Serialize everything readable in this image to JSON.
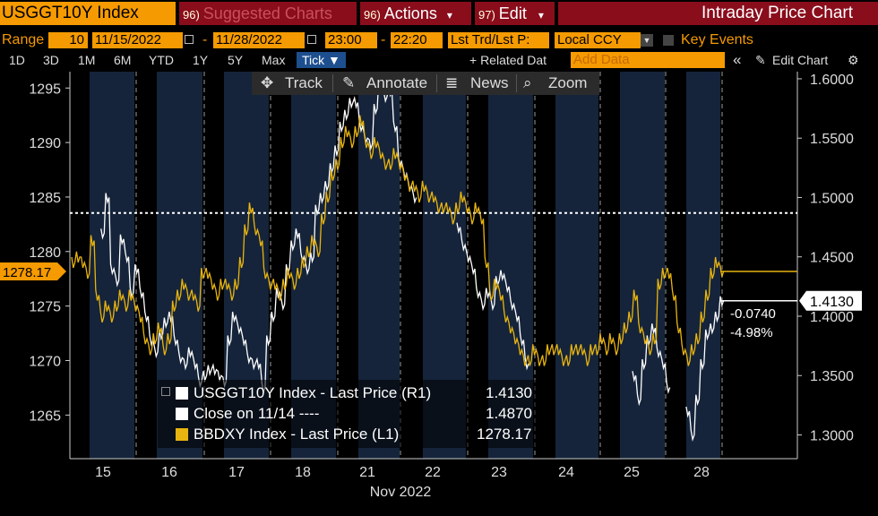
{
  "header": {
    "ticker": "USGGT10Y Index",
    "suggested": {
      "num": "96)",
      "label": "Suggested Charts"
    },
    "actions": {
      "num": "96)",
      "label": "Actions",
      "caret": "▾"
    },
    "edit": {
      "num": "97)",
      "label": "Edit",
      "caret": "▾"
    },
    "title": "Intraday Price Chart"
  },
  "controls": {
    "range_label": "Range",
    "range_value": "10",
    "start_date": "11/15/2022",
    "dash1": "-",
    "end_date": "11/28/2022",
    "start_time": "23:00",
    "dash2": "-",
    "end_time": "22:20",
    "price_type": "Lst Trd/Lst P:",
    "currency": "Local CCY",
    "key_events": "Key Events"
  },
  "periods": [
    "1D",
    "3D",
    "1M",
    "6M",
    "YTD",
    "1Y",
    "5Y",
    "Max"
  ],
  "tick_label": "Tick ▼",
  "related": "+ Related Dat",
  "add_data_placeholder": "Add Data",
  "collapse": "«",
  "edit_chart": "Edit Chart",
  "toolbar": {
    "track": "Track",
    "annotate": "Annotate",
    "news": "News",
    "zoom": "Zoom"
  },
  "colors": {
    "bg": "#000000",
    "shade": "#15243a",
    "white_series": "#ffffff",
    "yellow_series": "#e8b410",
    "accent": "#f59a00",
    "red_button": "#8a0d1c"
  },
  "chart_data": {
    "type": "line",
    "xlabel": "Nov 2022",
    "x_ticks": [
      "15",
      "16",
      "17",
      "18",
      "21",
      "22",
      "23",
      "24",
      "25",
      "28"
    ],
    "y_left_ticks": [
      "1295",
      "1290",
      "1285",
      "1280",
      "1275",
      "1270",
      "1265"
    ],
    "y_right_ticks": [
      "1.6000",
      "1.5500",
      "1.5000",
      "1.4500",
      "1.4000",
      "1.3500",
      "1.3000"
    ],
    "ylim_left": [
      1261,
      1296.5
    ],
    "ylim_right": [
      1.28,
      1.606
    ],
    "grid": "vertical dashed day separators",
    "series": [
      {
        "name": "USGGT10Y Index - Last Price (R1)",
        "axis": "right",
        "color": "#ffffff",
        "values": [
          null,
          null,
          null,
          null,
          null,
          null,
          1.47,
          1.5,
          1.44,
          1.43,
          1.465,
          1.45,
          1.42,
          1.44,
          1.42,
          1.4,
          1.38,
          1.37,
          1.385,
          1.395,
          1.4,
          1.38,
          1.365,
          1.36,
          1.37,
          1.36,
          1.345,
          1.35,
          1.355,
          1.355,
          1.35,
          1.345,
          1.38,
          1.4,
          1.39,
          1.38,
          1.365,
          1.36,
          1.36,
          1.34,
          1.38,
          1.4,
          1.42,
          1.41,
          1.44,
          1.46,
          1.47,
          1.45,
          1.44,
          1.45,
          1.49,
          1.5,
          1.51,
          1.525,
          1.54,
          1.56,
          1.57,
          1.58,
          1.58,
          1.56,
          1.55,
          1.545,
          1.575,
          1.6,
          1.585,
          1.59,
          1.56,
          1.53,
          1.52,
          1.51,
          1.5,
          null,
          null,
          null,
          null,
          null,
          null,
          null,
          null,
          1.475,
          1.46,
          1.45,
          1.44,
          1.42,
          1.41,
          1.42,
          1.41,
          1.43,
          1.435,
          1.425,
          1.41,
          1.4,
          1.38,
          1.36,
          null,
          null,
          null,
          null,
          null,
          null,
          null,
          null,
          null,
          null,
          null,
          null,
          null,
          null,
          null,
          null,
          null,
          null,
          null,
          null,
          null,
          1.35,
          1.33,
          1.36,
          1.38,
          1.39,
          1.37,
          1.36,
          1.34,
          null,
          null,
          null,
          1.32,
          1.3,
          1.33,
          1.36,
          1.385,
          1.39,
          1.4,
          1.413
        ]
      },
      {
        "name": "Close on 11/14 ----",
        "axis": "right",
        "color": "#ffffff",
        "value": 1.487
      },
      {
        "name": "BBDXY Index - Last Price (L1)",
        "axis": "left",
        "color": "#e8b410",
        "values": [
          1279,
          1279.5,
          1279,
          1278,
          1281,
          1276,
          1274,
          1275,
          1274,
          1275,
          1276,
          1275,
          1276,
          1275,
          1274,
          1272,
          1271,
          1272,
          1273,
          1271,
          1272,
          1275,
          1276,
          1277,
          1276,
          1276,
          1275,
          1278,
          1278,
          1277,
          1276,
          1277,
          1277,
          1276,
          1277,
          1279,
          1282,
          1284,
          1282,
          1281,
          1278,
          1277,
          1277,
          1276,
          1277,
          1278,
          1277,
          1278,
          1279,
          1280,
          1281,
          1280,
          1283,
          1285,
          1287,
          1288,
          1290,
          1291,
          1290,
          1291,
          1292,
          1290,
          1289,
          1290,
          1289,
          1288,
          1288,
          1289,
          1288,
          1287,
          1286,
          1286,
          1285,
          1286,
          1285,
          1285,
          1284,
          1284,
          1284,
          1283,
          1284,
          1285,
          1284,
          1283,
          1284,
          1283,
          1279,
          1276,
          1277,
          1276,
          1274,
          1273,
          1272,
          1271,
          1270,
          1270,
          1271,
          1270,
          1270,
          1271,
          1271,
          1271,
          1270,
          1270,
          1271,
          1271,
          1271,
          1270,
          1271,
          1271,
          1272,
          1271,
          1272,
          1271,
          1272,
          1273,
          1274,
          1276,
          1273,
          1272,
          1271,
          1272,
          1277,
          1278,
          1278,
          1276,
          1273,
          1271,
          1270,
          1271,
          1272,
          1274,
          1276,
          1278,
          1279,
          1278.17
        ]
      }
    ],
    "last_left_label": "1278.17",
    "last_right_label": "1.4130",
    "change": "-0.0740",
    "change_pct": "-4.98%"
  },
  "legend": {
    "items": [
      {
        "name": "USGGT10Y Index - Last Price (R1)",
        "value": "1.4130"
      },
      {
        "name": "Close on 11/14 ----",
        "value": "1.4870"
      },
      {
        "name": "BBDXY Index - Last Price (L1)",
        "value": "1278.17"
      }
    ]
  }
}
